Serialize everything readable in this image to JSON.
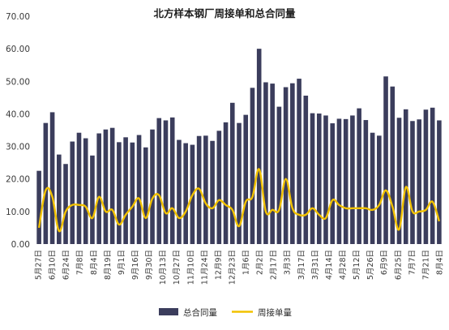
{
  "colors": {
    "bar": "#3b3d5c",
    "line": "#f2c200"
  },
  "chart_data": {
    "type": "bar",
    "title": "北方样本钢厂周接单和总合同量",
    "xlabel": "",
    "ylabel": "",
    "ylim": [
      0,
      70
    ],
    "yticks": [
      "0.00",
      "10.00",
      "20.00",
      "30.00",
      "40.00",
      "50.00",
      "60.00",
      "70.00"
    ],
    "grid": false,
    "legend_position": "bottom-center",
    "x_tick_labels": [
      "5月27日",
      "6月10日",
      "6月24日",
      "7月8日",
      "8月4日",
      "8月19日",
      "9月1日",
      "9月16日",
      "9月30日",
      "10月13日",
      "10月27日",
      "11月10日",
      "11月24日",
      "12月9日",
      "12月23日",
      "1月6日",
      "2月2日",
      "2月17日",
      "3月3日",
      "3月17日",
      "3月31日",
      "4月14日",
      "4月28日",
      "5月12日",
      "5月26日",
      "6月9日",
      "6月25日",
      "7月7日",
      "7月21日",
      "8月4日"
    ],
    "series": [
      {
        "name": "总合同量",
        "type": "bar",
        "values": [
          22.5,
          37.2,
          40.5,
          27.5,
          24.6,
          31.5,
          34.2,
          32.5,
          27.2,
          34.0,
          35.2,
          35.7,
          31.3,
          32.8,
          31.2,
          33.5,
          29.7,
          35.2,
          38.7,
          38.0,
          38.9,
          32.0,
          31.0,
          30.5,
          33.2,
          33.3,
          31.7,
          34.8,
          37.4,
          43.4,
          37.2,
          39.7,
          48.0,
          60.0,
          49.7,
          49.3,
          42.2,
          48.2,
          49.4,
          50.8,
          45.6,
          40.2,
          40.1,
          39.5,
          37.1,
          38.5,
          38.4,
          39.5,
          41.7,
          38.1,
          34.2,
          33.3,
          51.5,
          48.4,
          38.8,
          41.4,
          37.8,
          38.3,
          41.3,
          41.9,
          38.0
        ]
      },
      {
        "name": "周接单量",
        "type": "line",
        "values": [
          5.0,
          16.5,
          14.5,
          4.0,
          10.0,
          12.0,
          12.0,
          11.5,
          8.0,
          14.5,
          10.0,
          10.5,
          6.0,
          9.0,
          11.5,
          14.0,
          8.0,
          14.0,
          15.0,
          9.5,
          11.0,
          8.0,
          10.0,
          15.0,
          17.0,
          12.5,
          11.0,
          13.5,
          12.0,
          10.5,
          5.5,
          13.0,
          14.5,
          23.0,
          10.0,
          10.5,
          10.5,
          20.0,
          11.0,
          9.0,
          9.0,
          11.0,
          9.0,
          8.0,
          13.5,
          12.0,
          11.0,
          11.0,
          11.0,
          11.0,
          10.5,
          12.0,
          16.5,
          11.5,
          4.5,
          17.5,
          10.0,
          10.0,
          10.5,
          13.0,
          7.0
        ]
      }
    ]
  }
}
